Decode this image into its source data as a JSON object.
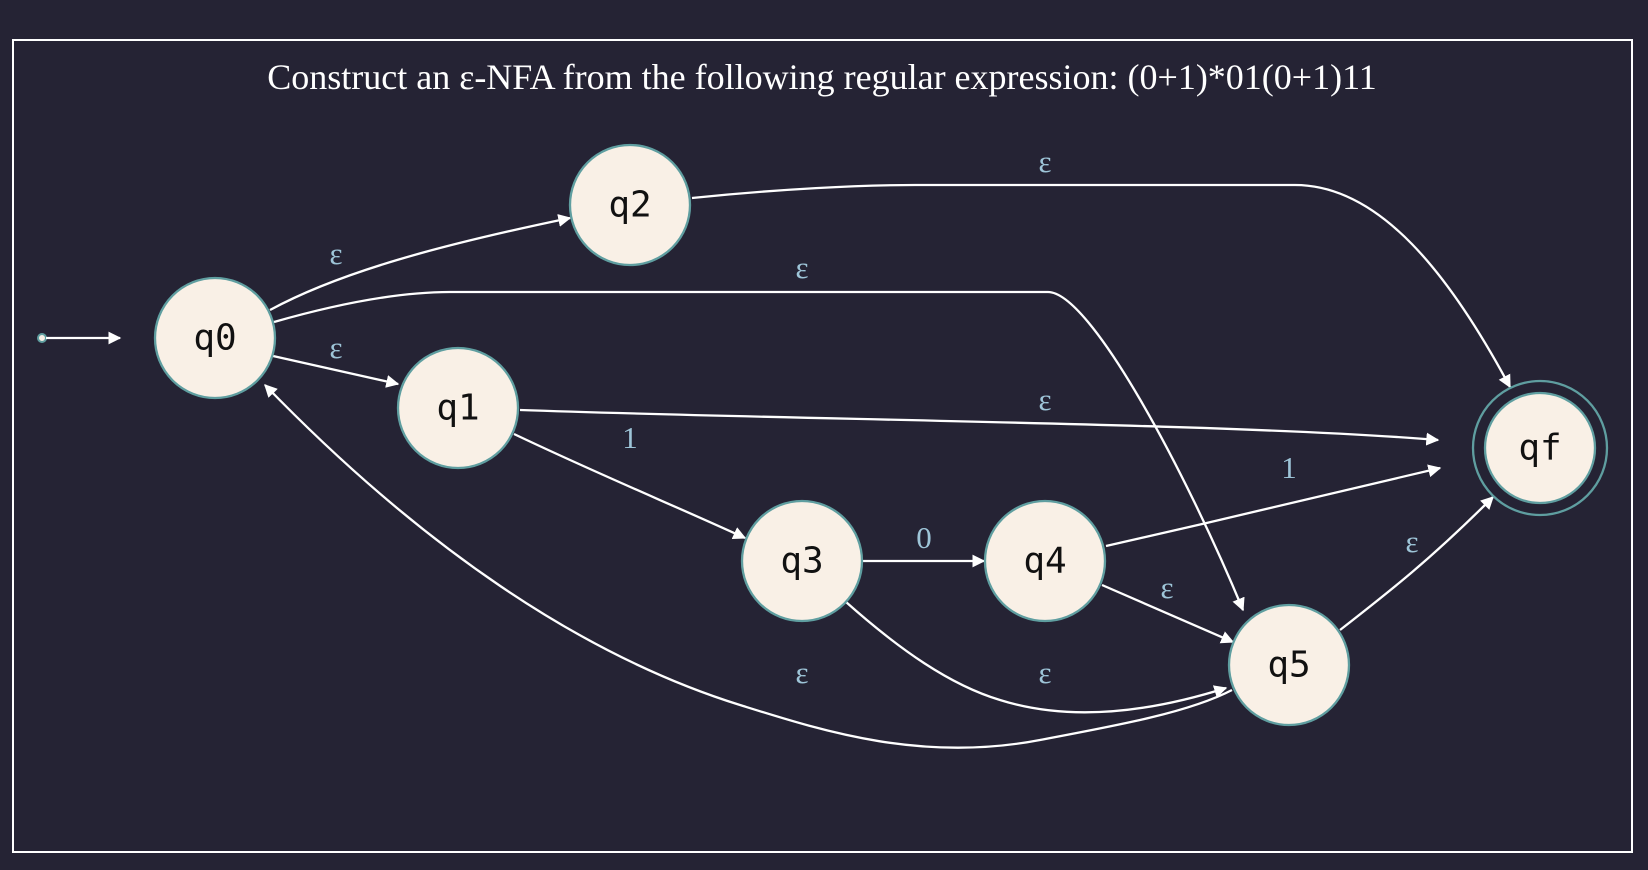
{
  "title": "Construct an ε-NFA from the following regular expression: (0+1)*01(0+1)11",
  "start_state": "q0",
  "states": [
    {
      "id": "q0",
      "label": "q0",
      "accepting": false
    },
    {
      "id": "q1",
      "label": "q1",
      "accepting": false
    },
    {
      "id": "q2",
      "label": "q2",
      "accepting": false
    },
    {
      "id": "q3",
      "label": "q3",
      "accepting": false
    },
    {
      "id": "q4",
      "label": "q4",
      "accepting": false
    },
    {
      "id": "q5",
      "label": "q5",
      "accepting": false
    },
    {
      "id": "qf",
      "label": "qf",
      "accepting": true
    }
  ],
  "transitions": [
    {
      "id": "q0-q2",
      "from": "q0",
      "to": "q2",
      "label": "ε"
    },
    {
      "id": "q0-q5",
      "from": "q0",
      "to": "q5",
      "label": "ε"
    },
    {
      "id": "q0-q1",
      "from": "q0",
      "to": "q1",
      "label": "ε"
    },
    {
      "id": "q2-qf",
      "from": "q2",
      "to": "qf",
      "label": "ε"
    },
    {
      "id": "q1-qf",
      "from": "q1",
      "to": "qf",
      "label": "ε"
    },
    {
      "id": "q1-q3",
      "from": "q1",
      "to": "q3",
      "label": "1"
    },
    {
      "id": "q3-q4",
      "from": "q3",
      "to": "q4",
      "label": "0"
    },
    {
      "id": "q4-qf",
      "from": "q4",
      "to": "qf",
      "label": "1"
    },
    {
      "id": "q4-q5",
      "from": "q4",
      "to": "q5",
      "label": "ε"
    },
    {
      "id": "q5-qf",
      "from": "q5",
      "to": "qf",
      "label": "ε"
    },
    {
      "id": "q3-q5",
      "from": "q3",
      "to": "q5",
      "label": "ε"
    },
    {
      "id": "q5-q0",
      "from": "q5",
      "to": "q0",
      "label": "ε"
    }
  ],
  "colors": {
    "background": "#252334",
    "frame": "#ffffff",
    "edge": "#ffffff",
    "edge_label": "#9ec5d8",
    "state_fill": "#f9f0e6",
    "state_stroke": "#5f9ea0",
    "state_text": "#111111",
    "title": "#ffffff"
  }
}
